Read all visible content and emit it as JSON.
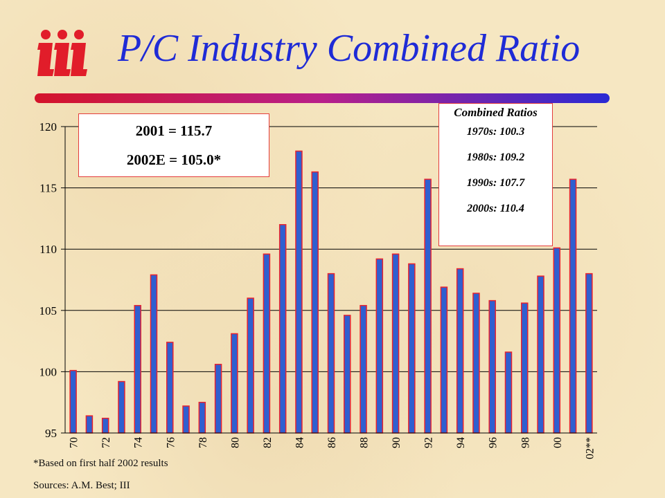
{
  "title": "P/C Industry Combined Ratio",
  "colors": {
    "title": "#1f2bd6",
    "bar_fill": "#2f5fd0",
    "bar_border": "#e8222e",
    "logo": "#e11d2a"
  },
  "callout_2001": {
    "line1": "2001 = 115.7",
    "line2": "2002E = 105.0*"
  },
  "decade_box": {
    "heading": "Combined Ratios",
    "rows": [
      "1970s: 100.3",
      "1980s: 109.2",
      "1990s: 107.7",
      "2000s: 110.4"
    ]
  },
  "footnote": "*Based on first half 2002 results",
  "sources": "Sources: A.M. Best; III",
  "chart_data": {
    "type": "bar",
    "title": "P/C Industry Combined Ratio",
    "xlabel": "",
    "ylabel": "",
    "ylim": [
      95,
      120
    ],
    "yticks": [
      95,
      100,
      105,
      110,
      115,
      120
    ],
    "grid": "horizontal",
    "categories": [
      "70",
      "71",
      "72",
      "73",
      "74",
      "75",
      "76",
      "77",
      "78",
      "79",
      "80",
      "81",
      "82",
      "83",
      "84",
      "85",
      "86",
      "87",
      "88",
      "89",
      "90",
      "91",
      "92",
      "93",
      "94",
      "95",
      "96",
      "97",
      "98",
      "99",
      "00",
      "01",
      "02**"
    ],
    "tick_labels": [
      "70",
      "",
      "72",
      "",
      "74",
      "",
      "76",
      "",
      "78",
      "",
      "80",
      "",
      "82",
      "",
      "84",
      "",
      "86",
      "",
      "88",
      "",
      "90",
      "",
      "92",
      "",
      "94",
      "",
      "96",
      "",
      "98",
      "",
      "00",
      "",
      "02**"
    ],
    "values": [
      100.1,
      96.4,
      96.2,
      99.2,
      105.4,
      107.9,
      102.4,
      97.2,
      97.5,
      100.6,
      103.1,
      106.0,
      109.6,
      112.0,
      118.0,
      116.3,
      108.0,
      104.6,
      105.4,
      109.2,
      109.6,
      108.8,
      115.7,
      106.9,
      108.4,
      106.4,
      105.8,
      101.6,
      105.6,
      107.8,
      110.1,
      115.7,
      108.0
    ]
  }
}
